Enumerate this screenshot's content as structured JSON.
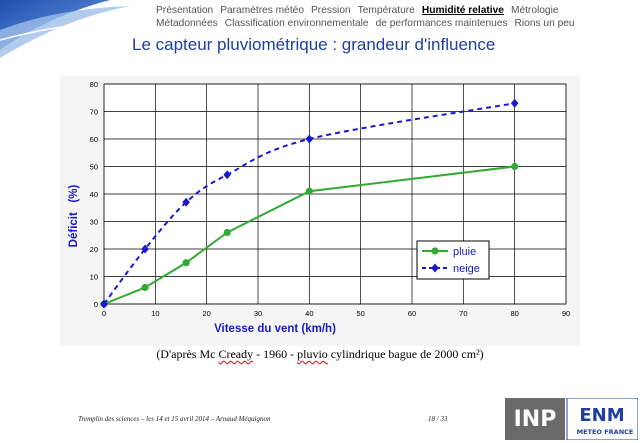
{
  "nav": {
    "rows": [
      [
        {
          "label": "Présentation",
          "active": false
        },
        {
          "label": "Paramètres météo",
          "active": false
        },
        {
          "label": "Pression",
          "active": false
        },
        {
          "label": "Température",
          "active": false
        },
        {
          "label": "Humidité relative",
          "active": true
        },
        {
          "label": "Métrologie",
          "active": false
        }
      ],
      [
        {
          "label": "Métadonnées",
          "active": false
        },
        {
          "label": "Classification environnementale",
          "active": false
        },
        {
          "label": "de performances maintenues",
          "active": false
        },
        {
          "label": "Rions un peu",
          "active": false
        }
      ]
    ]
  },
  "slide": {
    "title": "Le capteur pluviométrique : grandeur d'influence",
    "caption_pre": "(D'après Mc ",
    "caption_wavy1": "Cready",
    "caption_mid": " - 1960 - ",
    "caption_wavy2": "pluvio",
    "caption_post": " cylindrique bague de 2000 cm²)"
  },
  "footer": {
    "left": "Tremplin des sciences – les 14 et 15 avril 2014 – Arnaud Méquignon",
    "page": "18 / 33"
  },
  "logos": {
    "inp": "INP",
    "enm": "ENM",
    "meteo": "METEO FRANCE"
  },
  "chart_data": {
    "type": "line",
    "xlabel": "Vitesse du vent (km/h)",
    "ylabel": "Déficit   (%)",
    "xlim": [
      0,
      90
    ],
    "ylim": [
      0,
      80
    ],
    "xticks": [
      0,
      10,
      20,
      30,
      40,
      50,
      60,
      70,
      80,
      90
    ],
    "yticks": [
      0,
      10,
      20,
      30,
      40,
      50,
      60,
      70,
      80
    ],
    "grid": true,
    "legend_position": "right",
    "series": [
      {
        "name": "pluie",
        "color": "#33aa33",
        "style": "solid",
        "marker": "circle",
        "x": [
          0,
          8,
          16,
          24,
          40,
          80
        ],
        "y": [
          0,
          6,
          15,
          26,
          41,
          50
        ]
      },
      {
        "name": "neige",
        "color": "#1a1acc",
        "style": "dashed",
        "marker": "diamond",
        "x": [
          0,
          8,
          16,
          24,
          40,
          80
        ],
        "y": [
          0,
          20,
          37,
          47,
          60,
          73
        ]
      }
    ]
  },
  "colors": {
    "accent": "#1f3f9f",
    "plot_bg": "#ffffff",
    "frame_bg": "#f5f5f5"
  }
}
